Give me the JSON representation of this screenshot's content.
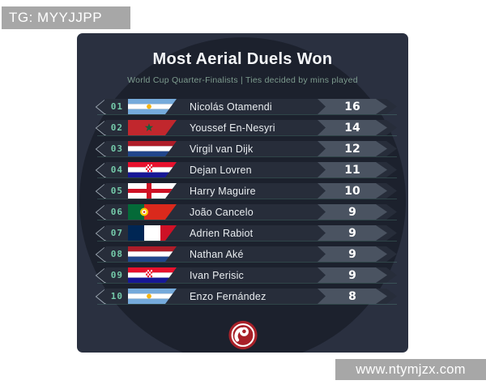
{
  "watermarks": {
    "top": "TG: MYYJJPP",
    "bottom": "www.ntymjzx.com"
  },
  "header": {
    "title": "Most Aerial Duels Won",
    "subtitle": "World Cup Quarter-Finalists | Ties decided by mins played"
  },
  "table": {
    "rows": [
      {
        "rank": "01",
        "flag": "argentina",
        "player": "Nicolás Otamendi",
        "value": "16"
      },
      {
        "rank": "02",
        "flag": "morocco",
        "player": "Youssef En-Nesyri",
        "value": "14"
      },
      {
        "rank": "03",
        "flag": "netherlands",
        "player": "Virgil van Dijk",
        "value": "12"
      },
      {
        "rank": "04",
        "flag": "croatia",
        "player": "Dejan Lovren",
        "value": "11"
      },
      {
        "rank": "05",
        "flag": "england",
        "player": "Harry Maguire",
        "value": "10"
      },
      {
        "rank": "06",
        "flag": "portugal",
        "player": "João Cancelo",
        "value": "9"
      },
      {
        "rank": "07",
        "flag": "france",
        "player": "Adrien Rabiot",
        "value": "9"
      },
      {
        "rank": "08",
        "flag": "netherlands",
        "player": "Nathan Aké",
        "value": "9"
      },
      {
        "rank": "09",
        "flag": "croatia",
        "player": "Ivan Perisic",
        "value": "9"
      },
      {
        "rank": "10",
        "flag": "argentina",
        "player": "Enzo Fernández",
        "value": "8"
      }
    ]
  },
  "chart_data": {
    "type": "table",
    "title": "Most Aerial Duels Won",
    "subtitle": "World Cup Quarter-Finalists | Ties decided by mins played",
    "columns": [
      "rank",
      "country",
      "player",
      "aerial_duels_won"
    ],
    "rows": [
      [
        1,
        "Argentina",
        "Nicolás Otamendi",
        16
      ],
      [
        2,
        "Morocco",
        "Youssef En-Nesyri",
        14
      ],
      [
        3,
        "Netherlands",
        "Virgil van Dijk",
        12
      ],
      [
        4,
        "Croatia",
        "Dejan Lovren",
        11
      ],
      [
        5,
        "England",
        "Harry Maguire",
        10
      ],
      [
        6,
        "Portugal",
        "João Cancelo",
        9
      ],
      [
        7,
        "France",
        "Adrien Rabiot",
        9
      ],
      [
        8,
        "Netherlands",
        "Nathan Aké",
        9
      ],
      [
        9,
        "Croatia",
        "Ivan Perisic",
        9
      ],
      [
        10,
        "Argentina",
        "Enzo Fernández",
        8
      ]
    ]
  },
  "logo": {
    "name": "brand-logo"
  },
  "colors": {
    "card_bg": "#2a3040",
    "circle_bg": "#1c212d",
    "row_bg": "#272d3a",
    "value_chip_bg": "#4a5361",
    "rank_text": "#74c9a9",
    "subtitle_text": "#7d9b8e",
    "title_text": "#f4f6f8",
    "logo_red": "#a82028",
    "watermark_bg": "#a7a7a7"
  }
}
